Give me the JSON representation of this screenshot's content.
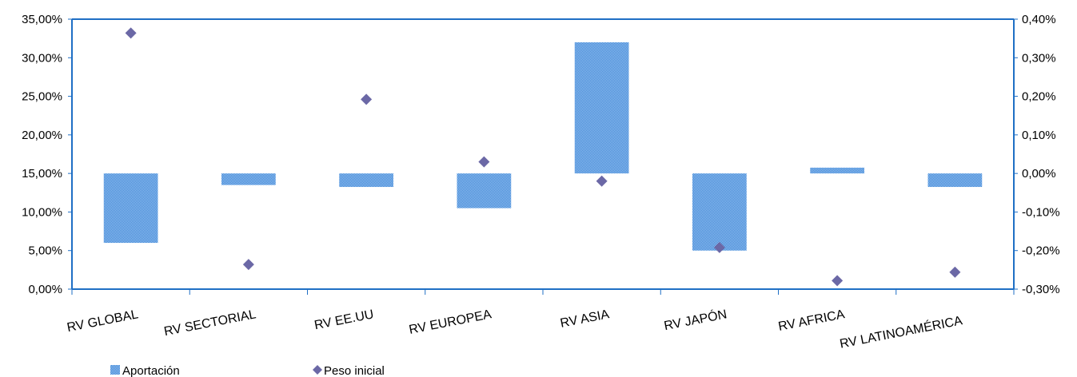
{
  "chart_data": {
    "type": "bar",
    "categories": [
      "RV GLOBAL",
      "RV SECTORIAL",
      "RV EE.UU",
      "RV EUROPEA",
      "RV ASIA",
      "RV JAPÓN",
      "RV AFRICA",
      "RV LATINOAMÉRICA"
    ],
    "series": [
      {
        "name": "Aportación",
        "kind": "bar",
        "axis": "right",
        "values": [
          -0.18,
          -0.03,
          -0.035,
          -0.09,
          0.34,
          -0.2,
          0.015,
          -0.035
        ]
      },
      {
        "name": "Peso inicial",
        "kind": "marker",
        "axis": "left",
        "values": [
          33.2,
          3.2,
          24.6,
          16.5,
          14.0,
          5.4,
          1.1,
          2.2
        ]
      }
    ],
    "y_left": {
      "min": 0,
      "max": 35,
      "step": 5,
      "ticks": [
        "0,00%",
        "5,00%",
        "10,00%",
        "15,00%",
        "20,00%",
        "25,00%",
        "30,00%",
        "35,00%"
      ]
    },
    "y_right": {
      "min": -0.3,
      "max": 0.4,
      "step": 0.1,
      "ticks": [
        "-0,30%",
        "-0,20%",
        "-0,10%",
        "0,00%",
        "0,10%",
        "0,20%",
        "0,30%",
        "0,40%"
      ]
    },
    "legend": {
      "position": "bottom-left"
    },
    "colors": {
      "bar": "#4f8fde",
      "marker": "#6b68a6",
      "axis": "#1f6fc5"
    }
  }
}
